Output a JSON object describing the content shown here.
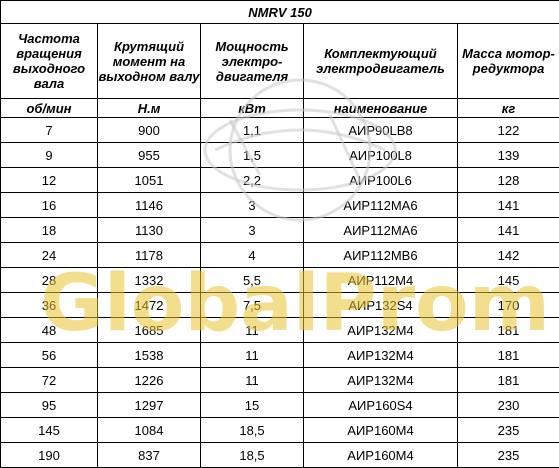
{
  "title": "NMRV 150",
  "headers": [
    "Частота вращения выходного вала",
    "Крутящий момент на выходном валу",
    "Мощность электро-двигателя",
    "Комплектующий электродвигатель",
    "Масса мотор-редуктора"
  ],
  "units": [
    "об/мин",
    "Н.м",
    "кВт",
    "наименование",
    "кг"
  ],
  "rows": [
    [
      "7",
      "900",
      "1,1",
      "АИР90LB8",
      "122"
    ],
    [
      "9",
      "955",
      "1,5",
      "АИР100L8",
      "139"
    ],
    [
      "12",
      "1051",
      "2,2",
      "АИР100L6",
      "128"
    ],
    [
      "16",
      "1146",
      "3",
      "АИР112МА6",
      "141"
    ],
    [
      "18",
      "1130",
      "3",
      "АИР112МА6",
      "141"
    ],
    [
      "24",
      "1178",
      "4",
      "АИР112МВ6",
      "142"
    ],
    [
      "28",
      "1332",
      "5,5",
      "АИР112М4",
      "145"
    ],
    [
      "36",
      "1472",
      "7,5",
      "АИР132S4",
      "170"
    ],
    [
      "48",
      "1685",
      "11",
      "АИР132М4",
      "181"
    ],
    [
      "56",
      "1538",
      "11",
      "АИР132М4",
      "181"
    ],
    [
      "72",
      "1226",
      "11",
      "АИР132М4",
      "181"
    ],
    [
      "95",
      "1297",
      "15",
      "АИР160S4",
      "230"
    ],
    [
      "145",
      "1084",
      "18,5",
      "АИР160М4",
      "235"
    ],
    [
      "190",
      "837",
      "18,5",
      "АИР160М4",
      "235"
    ]
  ],
  "watermark": {
    "text": "GlobalProm",
    "color": "#e8c22e",
    "icon": "globe-icon"
  },
  "colors": {
    "unit_text": "#1f4fa3",
    "border": "#000000"
  }
}
